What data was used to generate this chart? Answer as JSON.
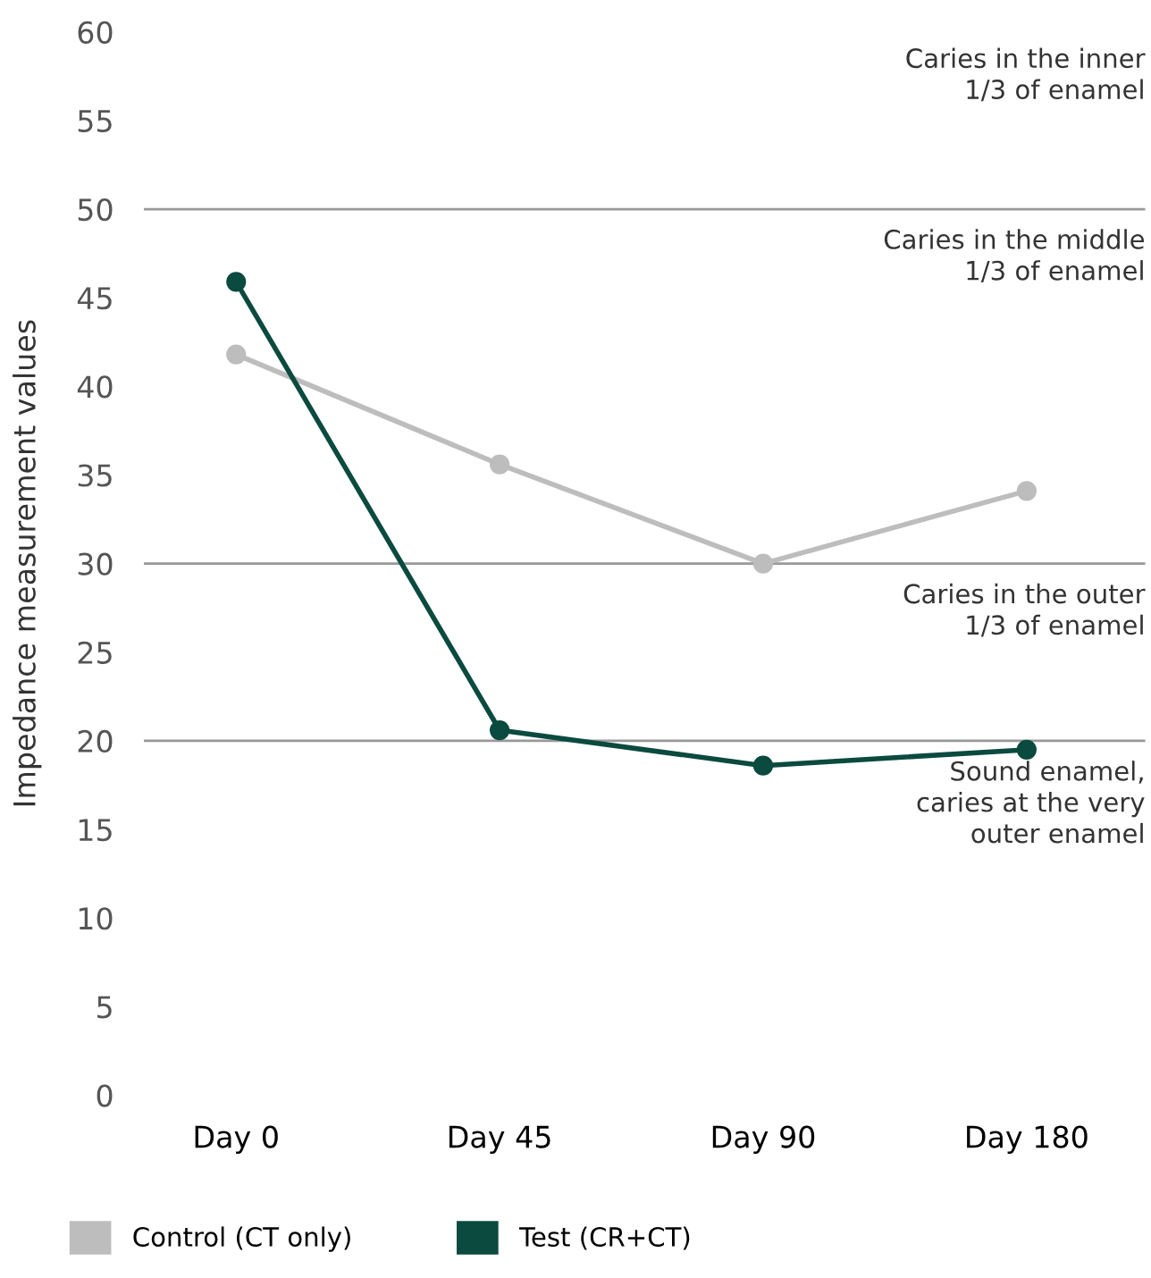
{
  "chart_data": {
    "type": "line",
    "ylabel": "Impedance measurement values",
    "categories": [
      "Day 0",
      "Day 45",
      "Day 90",
      "Day 180"
    ],
    "series": [
      {
        "name": "Control (CT only)",
        "color": "#bdbdbd",
        "values": [
          41.8,
          35.6,
          30.0,
          34.1
        ]
      },
      {
        "name": "Test (CR+CT)",
        "color": "#0b4a3f",
        "values": [
          45.9,
          20.6,
          18.6,
          19.5
        ]
      }
    ],
    "ylim": [
      0,
      60
    ],
    "yticks": [
      0,
      5,
      10,
      15,
      20,
      25,
      30,
      35,
      40,
      45,
      50,
      55,
      60
    ],
    "ref_lines": [
      {
        "axis": "y",
        "value": 50,
        "color": "#999999",
        "label": "Caries in the middle\n1/3 of enamel"
      },
      {
        "axis": "y",
        "value": 30,
        "color": "#999999",
        "label": "Caries in the outer\n1/3 of enamel"
      },
      {
        "axis": "y",
        "value": 20,
        "color": "#999999",
        "label": "Sound enamel,\ncaries at the very\nouter enamel"
      }
    ],
    "annotations": [
      "Caries in the inner\n1/3 of enamel"
    ],
    "marker": "circle",
    "line_style": "solid",
    "grid": false,
    "legend": "bottom left"
  }
}
